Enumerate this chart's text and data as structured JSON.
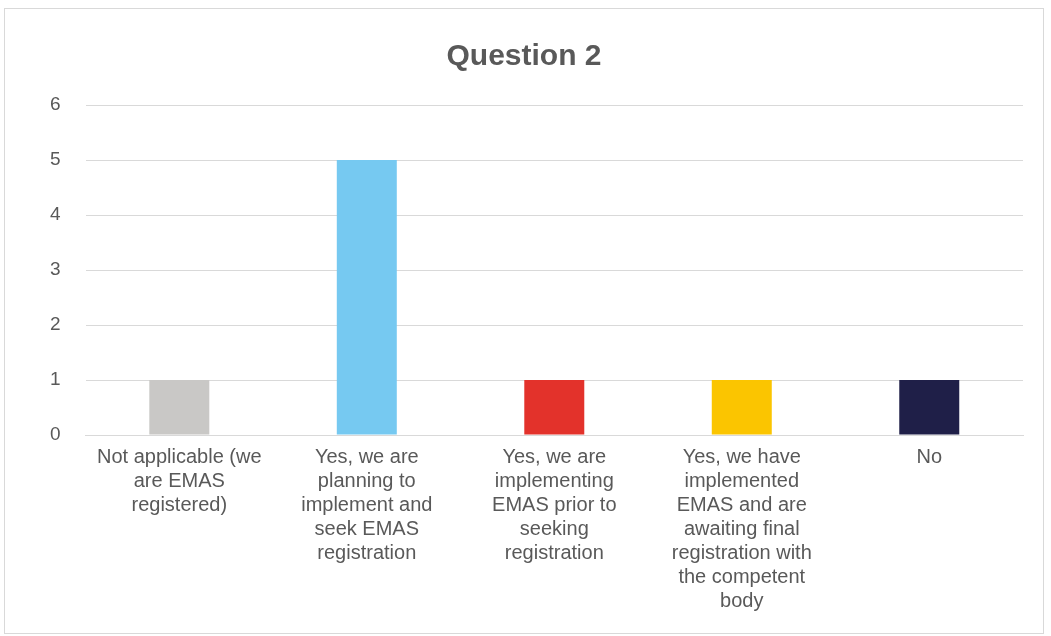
{
  "chart_data": {
    "type": "bar",
    "title": "Question 2",
    "categories": [
      "Not applicable (we are EMAS registered)",
      "Yes, we are planning to implement and seek EMAS registration",
      "Yes, we are implementing EMAS prior to seeking registration",
      "Yes, we have implemented EMAS and are awaiting final registration with the competent body",
      "No"
    ],
    "values": [
      1,
      5,
      1,
      1,
      1
    ],
    "colors": [
      "#c9c8c6",
      "#76c9f1",
      "#e3322b",
      "#fbc500",
      "#1f1f48"
    ],
    "ylim": [
      0,
      6
    ],
    "yticks": [
      0,
      1,
      2,
      3,
      4,
      5,
      6
    ],
    "grid": "y",
    "legend": false
  }
}
